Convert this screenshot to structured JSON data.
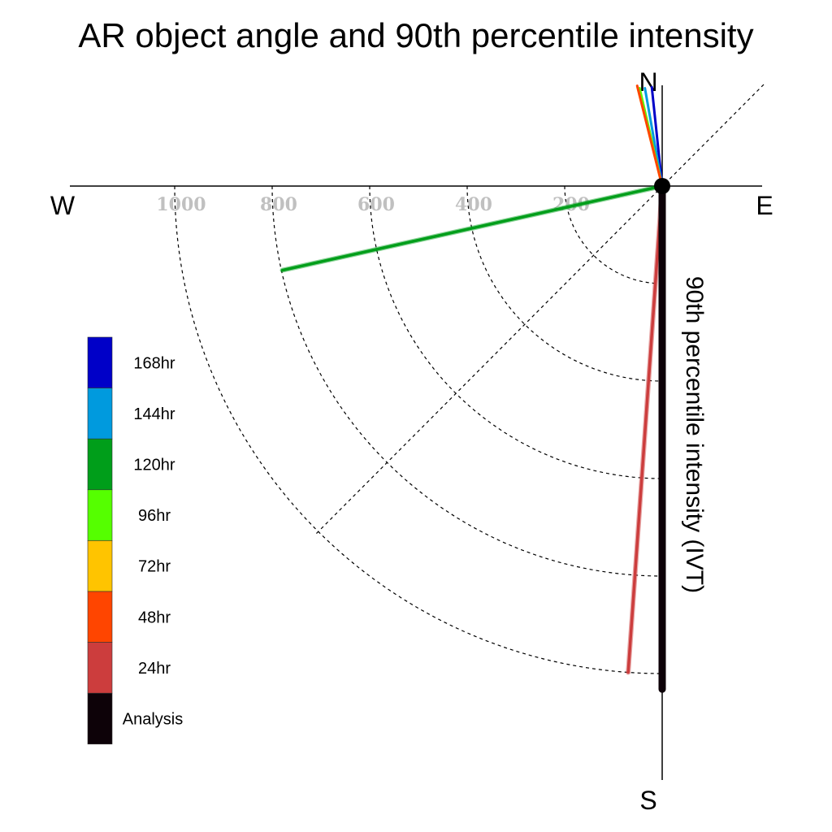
{
  "chart_data": {
    "type": "polar-vector",
    "title": "AR object angle and 90th percentile intensity",
    "axis_label": "90th percentile intensity (IVT)",
    "compass": {
      "n": "N",
      "s": "S",
      "e": "E",
      "w": "W"
    },
    "radial_ticks": [
      "200",
      "400",
      "600",
      "800",
      "1000"
    ],
    "radial_tick_values": [
      200,
      400,
      600,
      800,
      1000
    ],
    "radial_max": 1000,
    "series": [
      {
        "name": "Analysis",
        "color": "#0d0208",
        "angle_deg": 180.0,
        "intensity": 1032
      },
      {
        "name": "24hr",
        "color": "#cc3d3d",
        "angle_deg": 184.0,
        "intensity": 1000
      },
      {
        "name": "48hr",
        "color": "#ff4500",
        "angle_deg": 346.0,
        "intensity": 212
      },
      {
        "name": "72hr",
        "color": "#ffc400",
        "angle_deg": 346.0,
        "intensity": 208
      },
      {
        "name": "96hr",
        "color": "#55ff00",
        "angle_deg": 347.0,
        "intensity": 206
      },
      {
        "name": "120hr",
        "color": "#009e1a",
        "angle_deg": 257.5,
        "intensity": 798
      },
      {
        "name": "144hr",
        "color": "#009ade",
        "angle_deg": 350.0,
        "intensity": 204
      },
      {
        "name": "168hr",
        "color": "#0000c8",
        "angle_deg": 354.0,
        "intensity": 204
      }
    ],
    "legend": [
      "168hr",
      "144hr",
      "120hr",
      "96hr",
      "72hr",
      "48hr",
      "24hr",
      "Analysis"
    ]
  }
}
